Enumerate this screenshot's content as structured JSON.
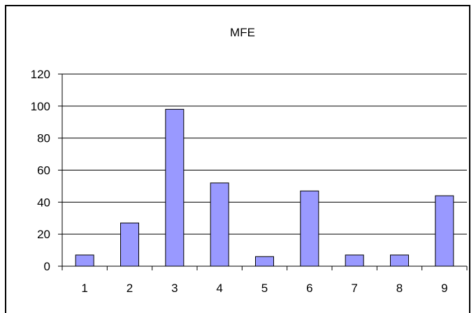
{
  "chart_data": {
    "type": "bar",
    "title": "MFE",
    "xlabel": "",
    "ylabel": "",
    "categories": [
      "1",
      "2",
      "3",
      "4",
      "5",
      "6",
      "7",
      "8",
      "9"
    ],
    "series": [
      {
        "values": [
          7,
          27,
          98,
          52,
          6,
          47,
          7,
          7,
          44
        ]
      }
    ],
    "ylim": [
      0,
      120
    ],
    "yticks": [
      "0",
      "20",
      "40",
      "60",
      "80",
      "100",
      "120"
    ],
    "grid": true,
    "legend": "none",
    "colors": {
      "bar_fill": "#9999FF",
      "bar_stroke": "#000000",
      "grid": "#000000"
    }
  }
}
